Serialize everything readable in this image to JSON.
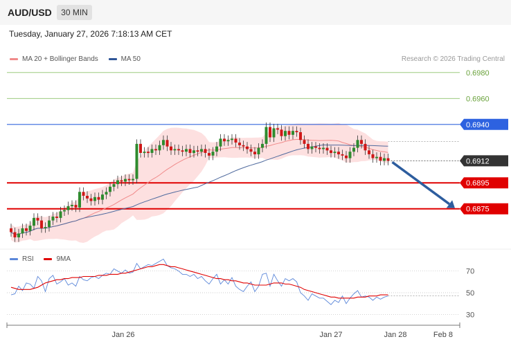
{
  "header": {
    "symbol": "AUD/USD",
    "timeframe": "30 MIN",
    "datetime": "Tuesday, January 27, 2026 7:18:13 AM CET",
    "copyright": "Research © 2026 Trading Central"
  },
  "legend": {
    "ma20_label": "MA 20 + Bollinger Bands",
    "ma50_label": "MA 50",
    "rsi_label": "RSI",
    "rsi_ma_label": "9MA"
  },
  "colors": {
    "up": "#2e8b2e",
    "down": "#d01818",
    "bollinger_fill": "#fde0e0",
    "ma20": "#f08a8a",
    "ma50": "#4f6a9e",
    "resistance_green": "#8dc26b",
    "resistance_blue": "#3366dd",
    "support_red": "#e00000",
    "rsi": "#5b87d9",
    "rsi_ma": "#e00000",
    "arrow": "#2d5d9e"
  },
  "chart_data": [
    {
      "type": "candlestick",
      "title": "",
      "x_ticks": [
        "Jan 26",
        "Jan 27",
        "Jan 28",
        "Feb 8"
      ],
      "ylim": [
        0.6845,
        0.699
      ],
      "levels": [
        {
          "value": 0.698,
          "label": "0.6980",
          "kind": "target"
        },
        {
          "value": 0.696,
          "label": "0.6960",
          "kind": "target"
        },
        {
          "value": 0.694,
          "label": "0.6940",
          "kind": "pivot"
        },
        {
          "value": 0.6912,
          "label": "0.6912",
          "kind": "last"
        },
        {
          "value": 0.6895,
          "label": "0.6895",
          "kind": "support"
        },
        {
          "value": 0.6875,
          "label": "0.6875",
          "kind": "support"
        }
      ],
      "arrow": {
        "from_value": 0.6912,
        "to_value": 0.6875,
        "direction": "down"
      },
      "closes": [
        0.6857,
        0.6853,
        0.6856,
        0.686,
        0.6858,
        0.6862,
        0.6868,
        0.6866,
        0.686,
        0.6861,
        0.6866,
        0.6869,
        0.6868,
        0.6873,
        0.6874,
        0.6877,
        0.6878,
        0.6876,
        0.6888,
        0.6885,
        0.6883,
        0.6881,
        0.6884,
        0.6882,
        0.6886,
        0.6888,
        0.6892,
        0.6894,
        0.6897,
        0.6896,
        0.6898,
        0.6897,
        0.6898,
        0.6925,
        0.6918,
        0.6919,
        0.6918,
        0.6921,
        0.692,
        0.6924,
        0.6928,
        0.6923,
        0.692,
        0.6921,
        0.692,
        0.6919,
        0.6921,
        0.6918,
        0.692,
        0.6919,
        0.6921,
        0.6918,
        0.6916,
        0.6919,
        0.6923,
        0.6929,
        0.6927,
        0.6928,
        0.6929,
        0.6926,
        0.6924,
        0.6923,
        0.6921,
        0.6919,
        0.6917,
        0.6922,
        0.6925,
        0.6938,
        0.693,
        0.6937,
        0.6936,
        0.6931,
        0.6935,
        0.6932,
        0.6935,
        0.6934,
        0.6928,
        0.6925,
        0.6921,
        0.6923,
        0.6922,
        0.6921,
        0.6922,
        0.692,
        0.6918,
        0.6919,
        0.6917,
        0.6916,
        0.6914,
        0.6919,
        0.6922,
        0.6928,
        0.6925,
        0.692,
        0.6917,
        0.6914,
        0.6915,
        0.6912,
        0.6914,
        0.6912
      ]
    },
    {
      "type": "line",
      "title": "RSI",
      "ylim": [
        20,
        80
      ],
      "y_ticks": [
        70,
        50,
        30
      ],
      "series": [
        {
          "name": "RSI",
          "values": [
            48,
            49,
            56,
            52,
            59,
            58,
            54,
            65,
            61,
            51,
            63,
            66,
            58,
            60,
            63,
            57,
            59,
            56,
            65,
            62,
            61,
            64,
            65,
            63,
            66,
            68,
            67,
            72,
            70,
            68,
            71,
            68,
            69,
            77,
            72,
            74,
            76,
            75,
            77,
            79,
            81,
            75,
            73,
            72,
            70,
            67,
            67,
            65,
            67,
            63,
            65,
            61,
            58,
            63,
            67,
            58,
            62,
            58,
            64,
            56,
            53,
            51,
            56,
            60,
            51,
            56,
            67,
            68,
            56,
            67,
            61,
            56,
            63,
            61,
            63,
            60,
            50,
            47,
            43,
            49,
            47,
            45,
            45,
            42,
            39,
            43,
            41,
            47,
            40,
            45,
            49,
            52,
            46,
            47,
            46,
            43,
            46,
            44,
            46,
            47
          ]
        },
        {
          "name": "9MA",
          "values": [
            55,
            54,
            53,
            53,
            53,
            53,
            54,
            55,
            57,
            59,
            60,
            61,
            62,
            62,
            63,
            63,
            64,
            64,
            64,
            65,
            65,
            65,
            65,
            66,
            66,
            66,
            67,
            67,
            67,
            68,
            68,
            69,
            70,
            71,
            72,
            73,
            74,
            74,
            75,
            76,
            76,
            75,
            74,
            74,
            73,
            72,
            71,
            70,
            69,
            68,
            67,
            66,
            65,
            64,
            63,
            63,
            62,
            62,
            61,
            61,
            60,
            59,
            59,
            58,
            57,
            57,
            57,
            57,
            58,
            59,
            59,
            59,
            58,
            58,
            57,
            56,
            55,
            53,
            52,
            51,
            50,
            49,
            48,
            47,
            46,
            46,
            45,
            45,
            45,
            45,
            45,
            46,
            46,
            46,
            47,
            47,
            47,
            48,
            48,
            48
          ]
        }
      ]
    }
  ]
}
